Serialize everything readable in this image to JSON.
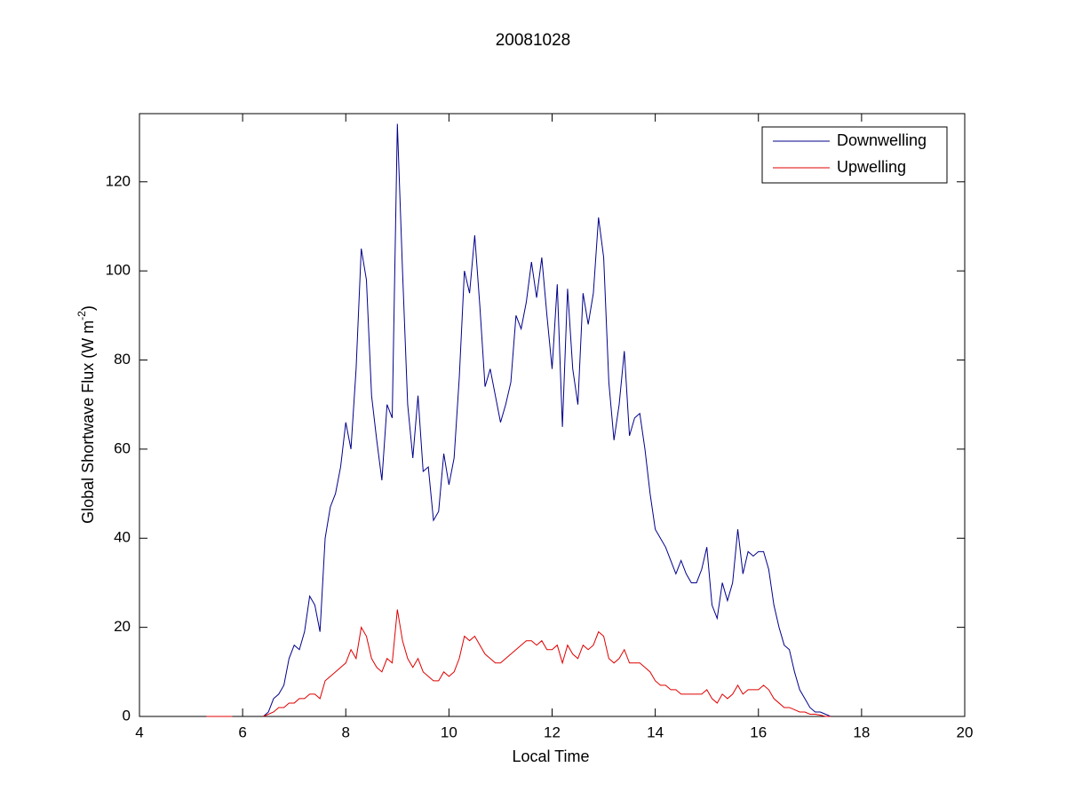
{
  "chart_data": {
    "type": "line",
    "title": "20081028",
    "x_label": "Local Time",
    "y_label": [
      "Global Shortwave Flux (W m",
      "-2",
      ")"
    ],
    "xlim": [
      4,
      20
    ],
    "xticks": [
      4,
      6,
      8,
      10,
      12,
      14,
      16,
      18,
      20
    ],
    "ylim": [
      0,
      135.3
    ],
    "yticks": [
      0,
      20,
      40,
      60,
      80,
      100,
      120
    ],
    "legend": "upper right",
    "grid": false,
    "x": [
      5.3,
      5.4,
      5.5,
      5.6,
      5.7,
      5.8,
      5.9,
      6.0,
      6.1,
      6.2,
      6.3,
      6.4,
      6.5,
      6.6,
      6.7,
      6.8,
      6.9,
      7.0,
      7.1,
      7.2,
      7.3,
      7.4,
      7.5,
      7.6,
      7.7,
      7.8,
      7.9,
      8.0,
      8.1,
      8.2,
      8.3,
      8.4,
      8.5,
      8.6,
      8.7,
      8.8,
      8.9,
      9.0,
      9.1,
      9.2,
      9.3,
      9.4,
      9.5,
      9.6,
      9.7,
      9.8,
      9.9,
      10.0,
      10.1,
      10.2,
      10.3,
      10.4,
      10.5,
      10.6,
      10.7,
      10.8,
      10.9,
      11.0,
      11.1,
      11.2,
      11.3,
      11.4,
      11.5,
      11.6,
      11.7,
      11.8,
      11.9,
      12.0,
      12.1,
      12.2,
      12.3,
      12.4,
      12.5,
      12.6,
      12.7,
      12.8,
      12.9,
      13.0,
      13.1,
      13.2,
      13.3,
      13.4,
      13.5,
      13.6,
      13.7,
      13.8,
      13.9,
      14.0,
      14.1,
      14.2,
      14.3,
      14.4,
      14.5,
      14.6,
      14.7,
      14.8,
      14.9,
      15.0,
      15.1,
      15.2,
      15.3,
      15.4,
      15.5,
      15.6,
      15.7,
      15.8,
      15.9,
      16.0,
      16.1,
      16.2,
      16.3,
      16.4,
      16.5,
      16.6,
      16.7,
      16.8,
      16.9,
      17.0,
      17.1,
      17.2,
      17.3,
      17.4
    ],
    "series": [
      {
        "name": "Downwelling",
        "color": "#00008b",
        "values": [
          null,
          null,
          null,
          null,
          null,
          null,
          null,
          null,
          null,
          null,
          null,
          0,
          1,
          4,
          5,
          7,
          13,
          16,
          15,
          19,
          27,
          25,
          19,
          40,
          47,
          50,
          56,
          66,
          60,
          78,
          105,
          98,
          72,
          62,
          53,
          70,
          67,
          133,
          100,
          70,
          58,
          72,
          55,
          56,
          44,
          46,
          59,
          52,
          58,
          76,
          100,
          95,
          108,
          92,
          74,
          78,
          72,
          66,
          70,
          75,
          90,
          87,
          93,
          102,
          94,
          103,
          90,
          78,
          97,
          65,
          96,
          78,
          70,
          95,
          88,
          95,
          112,
          103,
          75,
          62,
          70,
          82,
          63,
          67,
          68,
          60,
          50,
          42,
          40,
          38,
          35,
          32,
          35,
          32,
          30,
          30,
          33,
          38,
          25,
          22,
          30,
          26,
          30,
          42,
          32,
          37,
          36,
          37,
          37,
          33,
          25,
          20,
          16,
          15,
          10,
          6,
          4,
          2,
          1,
          1,
          0.5,
          0
        ]
      },
      {
        "name": "Upwelling",
        "color": "#e00000",
        "values": [
          0,
          0,
          0,
          0,
          0,
          0,
          null,
          null,
          null,
          null,
          null,
          0,
          0.5,
          1,
          2,
          2,
          3,
          3,
          4,
          4,
          5,
          5,
          4,
          8,
          9,
          10,
          11,
          12,
          15,
          13,
          20,
          18,
          13,
          11,
          10,
          13,
          12,
          24,
          17,
          13,
          11,
          13,
          10,
          9,
          8,
          8,
          10,
          9,
          10,
          13,
          18,
          17,
          18,
          16,
          14,
          13,
          12,
          12,
          13,
          14,
          15,
          16,
          17,
          17,
          16,
          17,
          15,
          15,
          16,
          12,
          16,
          14,
          13,
          16,
          15,
          16,
          19,
          18,
          13,
          12,
          13,
          15,
          12,
          12,
          12,
          11,
          10,
          8,
          7,
          7,
          6,
          6,
          5,
          5,
          5,
          5,
          5,
          6,
          4,
          3,
          5,
          4,
          5,
          7,
          5,
          6,
          6,
          6,
          7,
          6,
          4,
          3,
          2,
          2,
          1.5,
          1,
          1,
          0.5,
          0.5,
          0.3,
          0,
          0
        ]
      }
    ]
  }
}
